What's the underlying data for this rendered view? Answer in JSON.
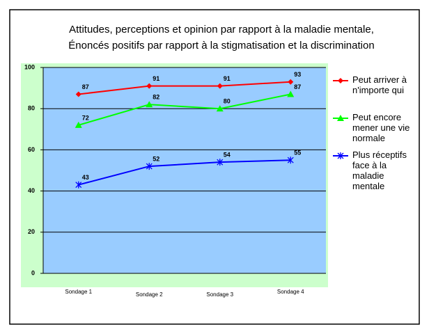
{
  "chart_data": {
    "type": "line",
    "title": "Attitudes, perceptions et opinion par rapport à la maladie mentale,",
    "subtitle": "Énoncés positifs par rapport à la stigmatisation et la discrimination",
    "categories": [
      "Sondage 1",
      "Sondage 2",
      "Sondage 3",
      "Sondage 4"
    ],
    "series": [
      {
        "name": "Peut arriver à n'importe qui",
        "color": "#ff0000",
        "marker": "diamond",
        "values": [
          87,
          91,
          91,
          93
        ]
      },
      {
        "name": "Peut encore mener une vie normale",
        "color": "#00ff00",
        "marker": "triangle",
        "values": [
          72,
          82,
          80,
          87
        ]
      },
      {
        "name": "Plus réceptifs face à la maladie mentale",
        "color": "#0000ff",
        "marker": "asterisk",
        "values": [
          43,
          52,
          54,
          55
        ]
      }
    ],
    "ylim": [
      0,
      100
    ],
    "yticks": [
      0,
      20,
      40,
      60,
      80,
      100
    ],
    "grid": true,
    "legend": "right"
  }
}
